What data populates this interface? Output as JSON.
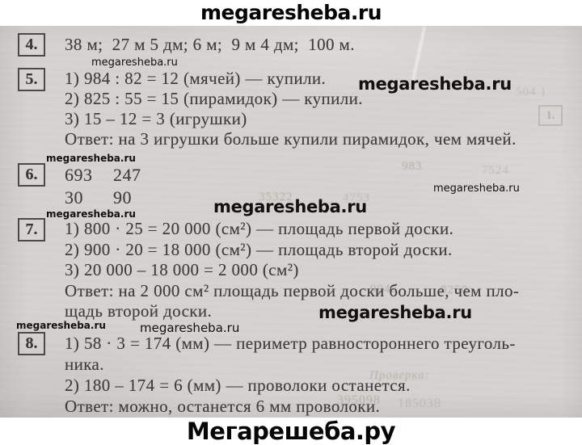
{
  "site": {
    "header_title": "megaresheba.ru",
    "footer_title": "Мегарешеба.ру"
  },
  "watermark": {
    "text": "megaresheba.ru"
  },
  "problems": [
    {
      "number": "4.",
      "lines": [
        "38 м;  27 м 5 дм; 6 м;  9 м 4 дм;  100 м."
      ]
    },
    {
      "number": "5.",
      "lines": [
        "1) 984 : 82 = 12 (мячей) — купили.",
        "2) 825 : 55 = 15 (пирамидок) — купили.",
        "3) 15 – 12 = 3 (игрушки)",
        "Ответ: на 3 игрушки больше купили пирамидок, чем мячей."
      ]
    },
    {
      "number": "6.",
      "rows": [
        [
          "693",
          "247"
        ],
        [
          "30",
          "90"
        ]
      ]
    },
    {
      "number": "7.",
      "lines": [
        "1) 800 · 25 = 20 000 (см²) — площадь первой доски.",
        "2) 900 · 20 = 18 000 (см²) — площадь второй доски.",
        "3) 20 000 – 18 000 = 2 000 (см²)",
        "Ответ: на 2 000 см² площадь первой доски больше, чем пло-",
        "щадь второй доски."
      ]
    },
    {
      "number": "8.",
      "lines": [
        "1) 58 · 3 = 174 (мм) — периметр равностороннего треуголь-",
        "ника.",
        "2) 180 – 174 = 6 (мм) — проволоки останется.",
        "Ответ: можно, останется 6 мм проволоки."
      ]
    }
  ],
  "artifacts": {
    "a1": "983",
    "a2": "7524",
    "a3": "35322",
    "a4": "4753",
    "a5": "9046",
    "a6": "8250",
    "a7": "504 1",
    "a8": "1.",
    "a9": "Проверка:",
    "a10": "395098",
    "a11": "185038"
  }
}
